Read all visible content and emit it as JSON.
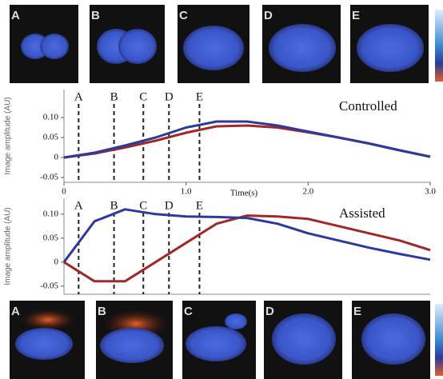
{
  "top_panels": [
    "A",
    "B",
    "C",
    "D",
    "E"
  ],
  "bottom_panels": [
    "A",
    "B",
    "C",
    "D",
    "E"
  ],
  "chart_data": [
    {
      "type": "line",
      "title": "Controlled",
      "ylabel": "Image amplitude (AU)",
      "xlabel": "Time(s)",
      "x": [
        0,
        0.25,
        0.5,
        0.75,
        1.0,
        1.25,
        1.5,
        1.75,
        2.0,
        2.25,
        2.5,
        2.75,
        3.0
      ],
      "series": [
        {
          "color": "#a02828",
          "values": [
            0,
            0.01,
            0.025,
            0.042,
            0.062,
            0.078,
            0.08,
            0.075,
            0.063,
            0.05,
            0.035,
            0.018,
            0.002
          ]
        },
        {
          "color": "#2b3a9c",
          "values": [
            0,
            0.012,
            0.03,
            0.05,
            0.075,
            0.09,
            0.09,
            0.08,
            0.065,
            0.05,
            0.035,
            0.018,
            0.002
          ]
        }
      ],
      "markers": [
        {
          "label": "A",
          "x": 0.12
        },
        {
          "label": "B",
          "x": 0.41
        },
        {
          "label": "C",
          "x": 0.65
        },
        {
          "label": "D",
          "x": 0.86
        },
        {
          "label": "E",
          "x": 1.11
        }
      ],
      "xlim": [
        0,
        3.0
      ],
      "ylim": [
        -0.062,
        0.17
      ],
      "xticks": [
        0,
        {
          "value": 1,
          "label": "1.0"
        },
        {
          "value": 2,
          "label": "2.0"
        },
        {
          "value": 3,
          "label": "3.0"
        }
      ],
      "yticks": [
        -0.05,
        0,
        0.05,
        {
          "value": 0.1,
          "label": "0.10"
        }
      ]
    },
    {
      "type": "line",
      "title": "Assisted",
      "ylabel": "Image amplitude (AU)",
      "x": [
        0,
        0.25,
        0.5,
        0.75,
        1.0,
        1.25,
        1.5,
        1.75,
        2.0,
        2.25,
        2.5,
        2.75,
        3.0
      ],
      "series": [
        {
          "color": "#a02828",
          "values": [
            0,
            -0.04,
            -0.04,
            0.0,
            0.04,
            0.08,
            0.097,
            0.095,
            0.09,
            0.075,
            0.06,
            0.045,
            0.025
          ]
        },
        {
          "color": "#2b3a9c",
          "values": [
            0,
            0.085,
            0.11,
            0.1,
            0.095,
            0.094,
            0.092,
            0.08,
            0.06,
            0.045,
            0.03,
            0.017,
            0.005
          ]
        }
      ],
      "markers": [
        {
          "label": "A",
          "x": 0.12
        },
        {
          "label": "B",
          "x": 0.41
        },
        {
          "label": "C",
          "x": 0.65
        },
        {
          "label": "D",
          "x": 0.86
        },
        {
          "label": "E",
          "x": 1.11
        }
      ],
      "xlim": [
        0,
        3.0
      ],
      "ylim": [
        -0.067,
        0.133
      ],
      "yticks": [
        -0.05,
        0,
        0.05,
        {
          "value": 0.1,
          "label": "0.10"
        }
      ]
    }
  ]
}
